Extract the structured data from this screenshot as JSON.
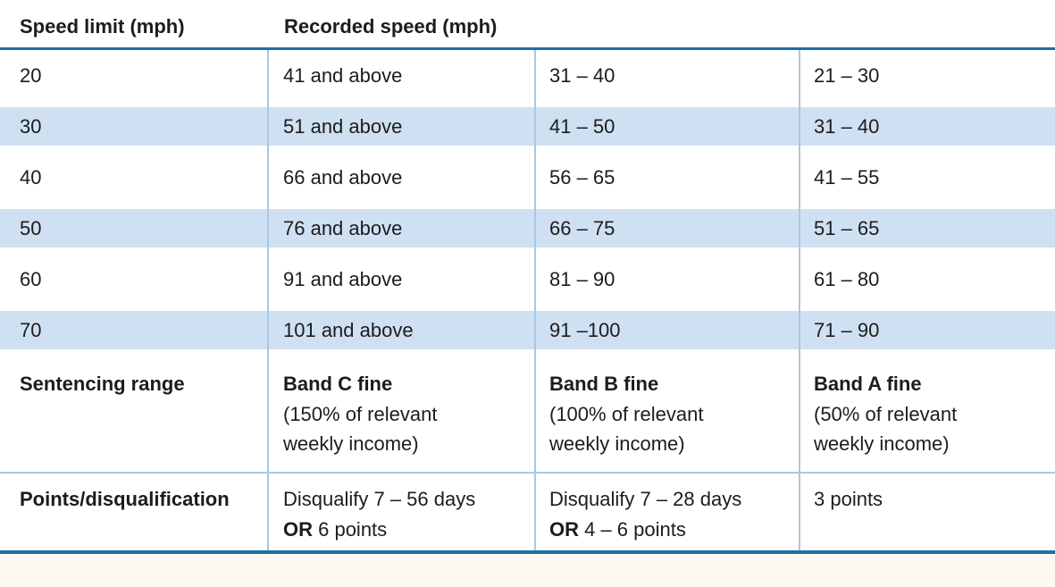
{
  "colors": {
    "rule_blue": "#1e6fa8",
    "stripe_blue": "#cfe0f2",
    "divider_blue": "#a9c8e3",
    "text": "#1c1c1c",
    "below_table_background": "#fdf9f2"
  },
  "table": {
    "header": {
      "speed_limit": "Speed limit (mph)",
      "recorded_speed": "Recorded speed (mph)"
    },
    "speed_rows": [
      {
        "limit": "20",
        "col2": "41 and above",
        "col3": "31 – 40",
        "col4": "21 – 30"
      },
      {
        "limit": "30",
        "col2": "51 and above",
        "col3": "41 – 50",
        "col4": "31 – 40"
      },
      {
        "limit": "40",
        "col2": "66 and above",
        "col3": "56 – 65",
        "col4": "41 – 55"
      },
      {
        "limit": "50",
        "col2": "76 and above",
        "col3": "66 – 75",
        "col4": "51 – 65"
      },
      {
        "limit": "60",
        "col2": "91 and above",
        "col3": "81 – 90",
        "col4": "61 – 80"
      },
      {
        "limit": "70",
        "col2": "101 and above",
        "col3": "91 –100",
        "col4": "71 – 90"
      }
    ],
    "sentencing_row": {
      "label": "Sentencing range",
      "cells": [
        {
          "band": "Band C fine",
          "line1": "(150% of relevant",
          "line2": "weekly income)"
        },
        {
          "band": "Band B fine",
          "line1": "(100% of relevant",
          "line2": "weekly income)"
        },
        {
          "band": "Band A fine",
          "line1": "(50% of relevant",
          "line2": "weekly income)"
        }
      ]
    },
    "points_row": {
      "label": "Points/disqualification",
      "cells": [
        {
          "line1": "Disqualify 7 – 56 days",
          "or": "OR",
          "rest": " 6 points"
        },
        {
          "line1": "Disqualify 7 – 28 days",
          "or": "OR",
          "rest": " 4 – 6 points"
        },
        {
          "line1": "3 points",
          "or": "",
          "rest": ""
        }
      ]
    }
  }
}
